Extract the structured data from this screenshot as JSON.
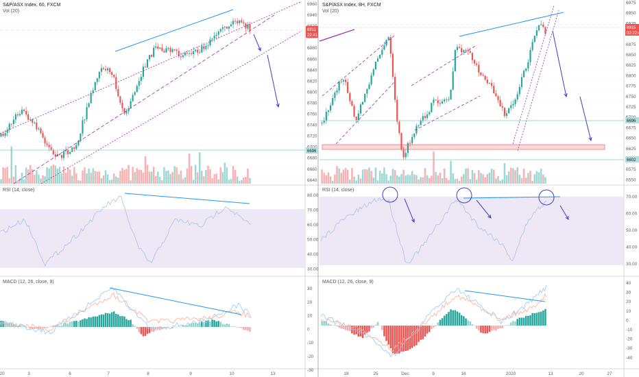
{
  "left": {
    "title": "S&P/ASX Index, 60, FXCM",
    "vol_label": "Vol (20)",
    "rsi_label": "RSI (14, close)",
    "macd_label": "MACD (12, 26, close, 9)",
    "price_ticks": [
      "6960",
      "6940",
      "6920",
      "6900",
      "6880",
      "6860",
      "6840",
      "6820",
      "6800",
      "6780",
      "6760",
      "6740",
      "6720",
      "6700",
      "6680",
      "6660",
      "6640"
    ],
    "rsi_ticks": [
      "80.00",
      "70.00",
      "60.00",
      "50.00",
      "40.00",
      "30.00"
    ],
    "price_badge": "6911",
    "price_timer": "22:41",
    "level_badge": "6696",
    "x_ticks": [
      "20",
      "3",
      "6",
      "7",
      "8",
      "9",
      "10",
      "13"
    ]
  },
  "right": {
    "title": "S&P/ASX Index, 8H, FXCM",
    "vol_label": "Vol (20)",
    "rsi_label": "RSI (14, close)",
    "macd_label": "MACD (12, 26, close, 9)",
    "price_ticks": [
      "6975",
      "6950",
      "6925",
      "6900",
      "6875",
      "6850",
      "6825",
      "6800",
      "6775",
      "6750",
      "6725",
      "6700",
      "6675",
      "6650",
      "6625",
      "6600",
      "6575",
      "6550"
    ],
    "rsi_ticks": [
      "70.00",
      "60.00",
      "50.00",
      "40.00",
      "30.00"
    ],
    "macd_ticks": [
      "40",
      "30",
      "20",
      "10",
      "0",
      "-10",
      "-20",
      "-30",
      "-40"
    ],
    "price_badge": "6915",
    "price_timer": "02:22:41",
    "level_badge_1": "6696",
    "level_badge_2": "6602",
    "x_ticks": [
      "18",
      "25",
      "Dec",
      "9",
      "16",
      "2020",
      "13",
      "20",
      "27"
    ]
  },
  "macd_left_ticks": [
    "30",
    "20",
    "10",
    "0",
    "-10",
    "-20",
    "-30"
  ],
  "colors": {
    "up": "#26a69a",
    "down": "#ef5350",
    "trend": "#2196f3",
    "channel": "#9c27b0",
    "arrow": "#3f3fc8",
    "rsi_band": "#ede7f6",
    "level": "#80cbc4"
  }
}
